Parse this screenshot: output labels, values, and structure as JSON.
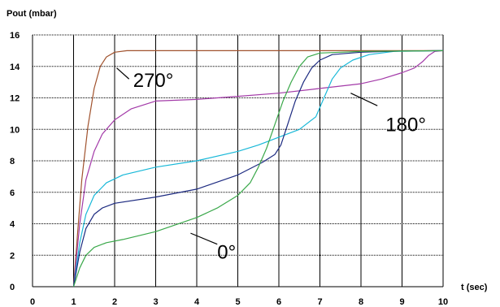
{
  "chart_data": {
    "type": "line",
    "ylabel": "Pout (mbar)",
    "xlabel": "t (sec)",
    "xlim": [
      0,
      10
    ],
    "ylim": [
      0,
      16
    ],
    "xticks": [
      "0",
      "1",
      "2",
      "3",
      "4",
      "5",
      "6",
      "7",
      "8",
      "9",
      "10"
    ],
    "yticks": [
      "0",
      "2",
      "4",
      "6",
      "8",
      "10",
      "12",
      "14",
      "16"
    ],
    "grid": true,
    "series": [
      {
        "color": "#a0522d",
        "points": [
          [
            1,
            0
          ],
          [
            1.1,
            3.5
          ],
          [
            1.2,
            6.8
          ],
          [
            1.35,
            10.2
          ],
          [
            1.5,
            12.6
          ],
          [
            1.65,
            14.0
          ],
          [
            1.8,
            14.6
          ],
          [
            2.0,
            14.9
          ],
          [
            2.3,
            15.0
          ],
          [
            10,
            15.0
          ]
        ]
      },
      {
        "color": "#a33aa8",
        "points": [
          [
            1,
            0
          ],
          [
            1.15,
            4.0
          ],
          [
            1.3,
            6.8
          ],
          [
            1.5,
            8.6
          ],
          [
            1.7,
            9.7
          ],
          [
            2.0,
            10.6
          ],
          [
            2.4,
            11.3
          ],
          [
            3.0,
            11.8
          ],
          [
            4.0,
            11.9
          ],
          [
            5.0,
            12.1
          ],
          [
            6.0,
            12.3
          ],
          [
            7.0,
            12.6
          ],
          [
            8.0,
            12.9
          ],
          [
            8.5,
            13.2
          ],
          [
            9.0,
            13.6
          ],
          [
            9.3,
            13.9
          ],
          [
            9.5,
            14.3
          ],
          [
            9.65,
            14.7
          ],
          [
            9.8,
            14.95
          ],
          [
            10,
            15.0
          ]
        ]
      },
      {
        "color": "#18b8d8",
        "points": [
          [
            1,
            0
          ],
          [
            1.15,
            2.8
          ],
          [
            1.3,
            4.6
          ],
          [
            1.5,
            5.8
          ],
          [
            1.8,
            6.6
          ],
          [
            2.2,
            7.1
          ],
          [
            3.0,
            7.6
          ],
          [
            4.0,
            8.0
          ],
          [
            5.0,
            8.6
          ],
          [
            5.5,
            9.0
          ],
          [
            6.0,
            9.5
          ],
          [
            6.5,
            10.0
          ],
          [
            6.9,
            10.8
          ],
          [
            7.1,
            12.0
          ],
          [
            7.3,
            13.2
          ],
          [
            7.5,
            13.9
          ],
          [
            7.8,
            14.4
          ],
          [
            8.2,
            14.75
          ],
          [
            8.8,
            14.95
          ],
          [
            10,
            15.0
          ]
        ]
      },
      {
        "color": "#1c2a80",
        "points": [
          [
            1,
            0
          ],
          [
            1.15,
            2.2
          ],
          [
            1.3,
            3.7
          ],
          [
            1.5,
            4.6
          ],
          [
            1.7,
            5.0
          ],
          [
            2.0,
            5.3
          ],
          [
            3.0,
            5.7
          ],
          [
            4.0,
            6.2
          ],
          [
            5.0,
            7.1
          ],
          [
            5.6,
            7.9
          ],
          [
            5.9,
            8.4
          ],
          [
            6.05,
            9.0
          ],
          [
            6.2,
            10.2
          ],
          [
            6.4,
            11.8
          ],
          [
            6.6,
            13.0
          ],
          [
            6.8,
            13.9
          ],
          [
            7.0,
            14.4
          ],
          [
            7.3,
            14.75
          ],
          [
            8.0,
            14.9
          ],
          [
            9.0,
            14.98
          ],
          [
            10,
            15.0
          ]
        ]
      },
      {
        "color": "#3aa84a",
        "points": [
          [
            1,
            0
          ],
          [
            1.15,
            1.2
          ],
          [
            1.3,
            2.0
          ],
          [
            1.5,
            2.5
          ],
          [
            1.8,
            2.8
          ],
          [
            2.2,
            3.0
          ],
          [
            3.0,
            3.5
          ],
          [
            4.0,
            4.4
          ],
          [
            4.5,
            5.0
          ],
          [
            5.0,
            5.8
          ],
          [
            5.3,
            6.6
          ],
          [
            5.5,
            7.6
          ],
          [
            5.7,
            8.8
          ],
          [
            5.9,
            10.3
          ],
          [
            6.1,
            11.8
          ],
          [
            6.3,
            13.0
          ],
          [
            6.5,
            14.0
          ],
          [
            6.7,
            14.6
          ],
          [
            7.0,
            14.85
          ],
          [
            8.0,
            14.95
          ],
          [
            10,
            15.0
          ]
        ]
      }
    ],
    "annotations": [
      {
        "text": "270°",
        "x": 2.45,
        "y": 13.1,
        "lx1": 2.05,
        "ly1": 13.9,
        "lx2": 2.35,
        "ly2": 13.2
      },
      {
        "text": "180°",
        "x": 8.6,
        "y": 10.3,
        "lx1": 8.4,
        "ly1": 11.5,
        "lx2": 7.75,
        "ly2": 12.3
      },
      {
        "text": "0°",
        "x": 4.5,
        "y": 2.2,
        "lx1": 3.85,
        "ly1": 3.4,
        "lx2": 4.5,
        "ly2": 2.7
      }
    ]
  }
}
